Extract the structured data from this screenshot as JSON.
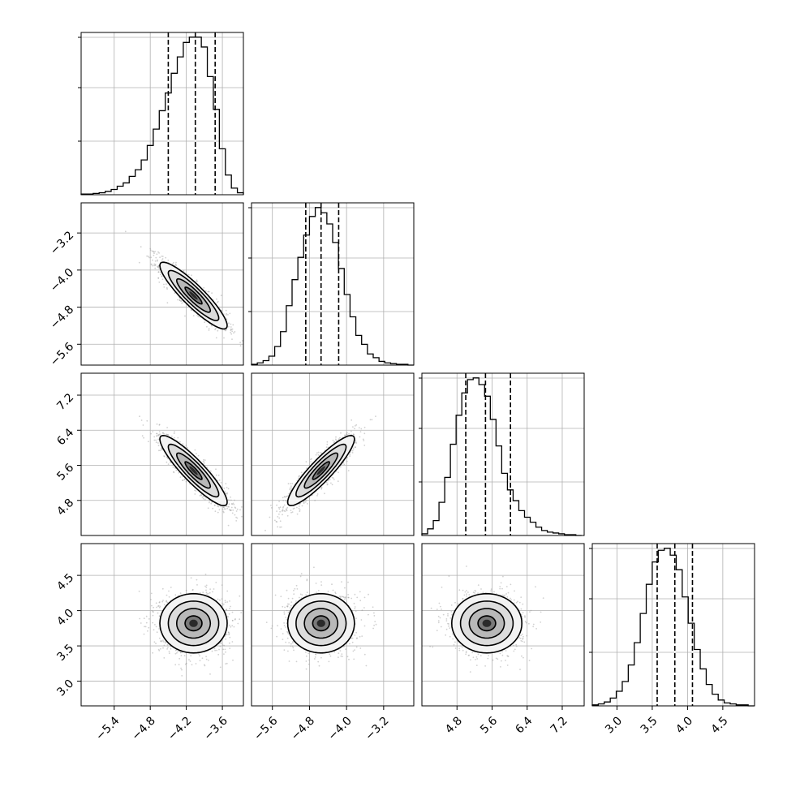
{
  "chart_data": {
    "type": "corner",
    "grid": true,
    "n_params": 4,
    "colors": {
      "line": "#000000",
      "grid": "#b0b0b0",
      "scatter": "#9a9a9a",
      "background": "#ffffff"
    },
    "params": [
      {
        "index": 0,
        "range": [
          -5.95,
          -3.25
        ],
        "ticks": [
          -5.4,
          -4.8,
          -4.2,
          -3.6
        ],
        "tick_labels": [
          "−5.4",
          "−4.8",
          "−4.2",
          "−3.6"
        ],
        "mean": -4.08,
        "sd": 0.28,
        "quantiles": [
          -4.5,
          -4.05,
          -3.72
        ],
        "hist": {
          "edges": [
            -5.95,
            -5.85,
            -5.75,
            -5.65,
            -5.55,
            -5.45,
            -5.35,
            -5.25,
            -5.15,
            -5.05,
            -4.95,
            -4.85,
            -4.75,
            -4.65,
            -4.55,
            -4.45,
            -4.35,
            -4.25,
            -4.15,
            -4.05,
            -3.95,
            -3.85,
            -3.75,
            -3.65,
            -3.55,
            -3.45,
            -3.35,
            -3.25
          ],
          "counts": [
            1,
            1,
            2,
            3,
            5,
            8,
            13,
            18,
            28,
            38,
            53,
            75,
            100,
            128,
            155,
            185,
            210,
            232,
            240,
            240,
            225,
            180,
            130,
            70,
            30,
            10,
            3
          ]
        }
      },
      {
        "index": 1,
        "range": [
          -6.05,
          -2.55
        ],
        "ticks": [
          -5.6,
          -4.8,
          -4.0,
          -3.2
        ],
        "tick_labels": [
          "−5.6",
          "−4.8",
          "−4.0",
          "−3.2"
        ],
        "mean": -4.55,
        "sd": 0.36,
        "quantiles": [
          -4.88,
          -4.55,
          -4.17
        ],
        "hist": {
          "edges": [
            -6.05,
            -5.925,
            -5.8,
            -5.675,
            -5.55,
            -5.425,
            -5.3,
            -5.175,
            -5.05,
            -4.925,
            -4.8,
            -4.675,
            -4.55,
            -4.425,
            -4.3,
            -4.175,
            -4.05,
            -3.925,
            -3.8,
            -3.675,
            -3.55,
            -3.425,
            -3.3,
            -3.175,
            -3.05,
            -2.925,
            -2.8,
            -2.675,
            -2.55
          ],
          "counts": [
            1,
            3,
            6,
            12,
            25,
            45,
            80,
            115,
            145,
            175,
            200,
            212,
            205,
            190,
            165,
            130,
            95,
            65,
            40,
            28,
            15,
            10,
            5,
            3,
            2,
            1,
            1,
            0
          ]
        }
      },
      {
        "index": 2,
        "range": [
          4.0,
          7.7
        ],
        "ticks": [
          4.8,
          5.6,
          6.4,
          7.2
        ],
        "tick_labels": [
          "4.8",
          "5.6",
          "6.4",
          "7.2"
        ],
        "mean": 5.48,
        "sd": 0.4,
        "quantiles": [
          5.0,
          5.45,
          6.02
        ],
        "hist": {
          "edges": [
            4.0,
            4.13,
            4.26,
            4.39,
            4.52,
            4.65,
            4.78,
            4.91,
            5.04,
            5.17,
            5.3,
            5.43,
            5.56,
            5.69,
            5.82,
            5.95,
            6.08,
            6.21,
            6.34,
            6.47,
            6.6,
            6.73,
            6.86,
            6.99,
            7.12,
            7.25,
            7.38,
            7.51,
            7.64
          ],
          "counts": [
            2,
            8,
            18,
            40,
            70,
            110,
            145,
            172,
            188,
            190,
            182,
            168,
            140,
            108,
            75,
            55,
            42,
            30,
            22,
            16,
            10,
            6,
            4,
            3,
            2,
            1,
            1,
            0
          ]
        }
      },
      {
        "index": 3,
        "range": [
          2.65,
          4.95
        ],
        "ticks": [
          3.0,
          3.5,
          4.0,
          4.5
        ],
        "tick_labels": [
          "3.0",
          "3.5",
          "4.0",
          "4.5"
        ],
        "mean": 3.82,
        "sd": 0.21,
        "quantiles": [
          3.57,
          3.82,
          4.07
        ],
        "hist": {
          "edges": [
            2.65,
            2.735,
            2.82,
            2.905,
            2.99,
            3.075,
            3.16,
            3.245,
            3.33,
            3.415,
            3.5,
            3.585,
            3.67,
            3.755,
            3.84,
            3.925,
            4.01,
            4.095,
            4.18,
            4.265,
            4.35,
            4.435,
            4.52,
            4.605,
            4.69,
            4.775,
            4.86,
            4.945
          ],
          "counts": [
            1,
            2,
            4,
            8,
            15,
            25,
            42,
            65,
            95,
            125,
            148,
            160,
            162,
            155,
            140,
            112,
            85,
            58,
            38,
            22,
            12,
            6,
            3,
            2,
            1,
            1,
            0
          ]
        }
      }
    ],
    "correlations": [
      [
        1.0,
        -0.9,
        -0.9,
        0.0
      ],
      [
        -0.9,
        1.0,
        0.9,
        0.0
      ],
      [
        -0.9,
        0.9,
        1.0,
        0.0
      ],
      [
        0.0,
        0.0,
        0.0,
        1.0
      ]
    ]
  }
}
